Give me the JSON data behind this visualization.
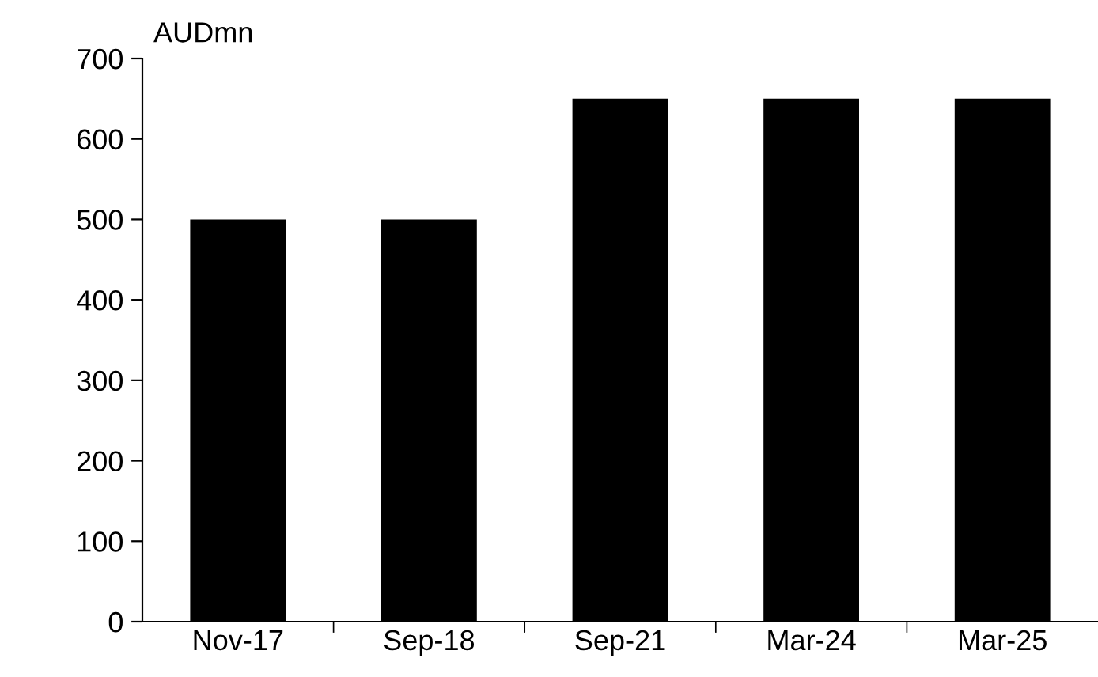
{
  "chart_data": {
    "type": "bar",
    "ylabel": "AUDmn",
    "categories": [
      "Nov-17",
      "Sep-18",
      "Sep-21",
      "Mar-24",
      "Mar-25"
    ],
    "values": [
      500,
      500,
      650,
      650,
      650
    ],
    "color": "#000000",
    "ylim": [
      0,
      700
    ],
    "yticks": [
      0,
      100,
      200,
      300,
      400,
      500,
      600,
      700
    ],
    "grid": false
  }
}
